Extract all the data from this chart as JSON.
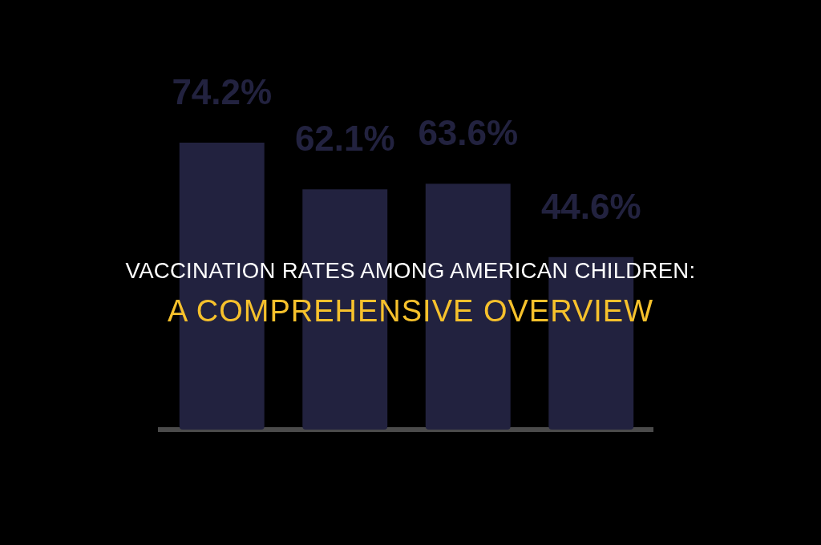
{
  "chart_data": {
    "type": "bar",
    "title": "VACCINATION RATES AMONG AMERICAN CHILDREN:",
    "subtitle": "A COMPREHENSIVE OVERVIEW",
    "categories": [
      null,
      null,
      null,
      null
    ],
    "values": [
      74.2,
      62.1,
      63.6,
      44.6
    ],
    "value_labels": [
      "74.2%",
      "62.1%",
      "63.6%",
      "44.6%"
    ],
    "color": "#22223f"
  }
}
